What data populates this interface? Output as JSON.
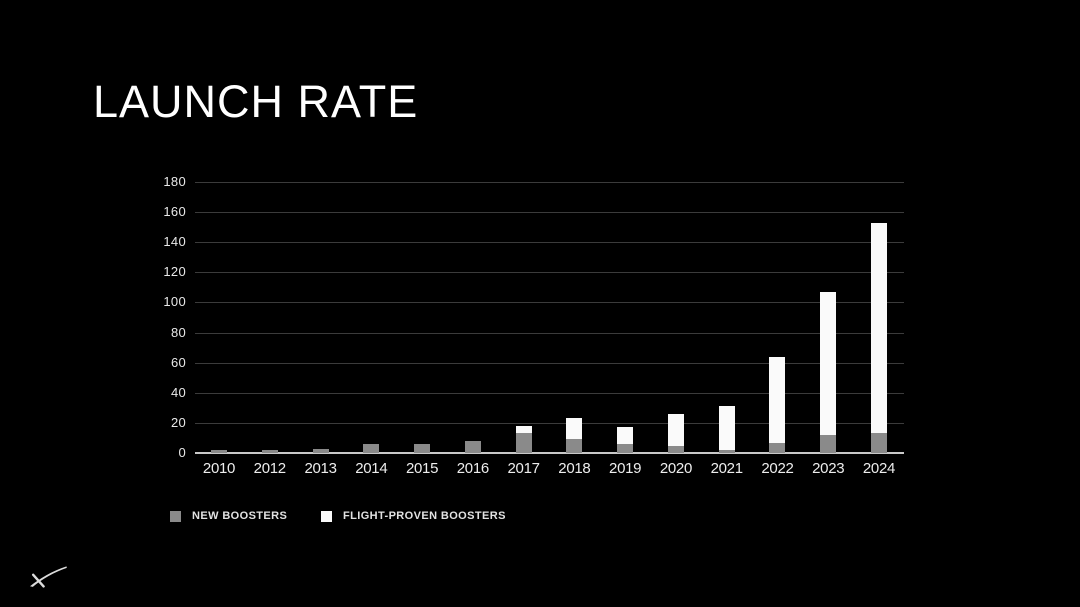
{
  "slide": {
    "title": "LAUNCH RATE",
    "background_color": "#000000"
  },
  "legend": {
    "items": [
      {
        "label": "NEW BOOSTERS",
        "color": "#8a8a8a"
      },
      {
        "label": "FLIGHT-PROVEN BOOSTERS",
        "color": "#fafafa"
      }
    ]
  },
  "logo": {
    "name": "spacex-x-logo"
  },
  "chart_data": {
    "type": "bar",
    "stacked": true,
    "title": "LAUNCH RATE",
    "xlabel": "",
    "ylabel": "",
    "ylim": [
      0,
      180
    ],
    "ytick_step": 20,
    "grid": "horizontal",
    "legend_position": "bottom-left",
    "categories": [
      "2010",
      "2012",
      "2013",
      "2014",
      "2015",
      "2016",
      "2017",
      "2018",
      "2019",
      "2020",
      "2021",
      "2022",
      "2023",
      "2024"
    ],
    "series": [
      {
        "name": "NEW BOOSTERS",
        "color": "#8a8a8a",
        "values": [
          2,
          2,
          3,
          6,
          6,
          8,
          13,
          9,
          6,
          5,
          2,
          7,
          12,
          13
        ]
      },
      {
        "name": "FLIGHT-PROVEN BOOSTERS",
        "color": "#fafafa",
        "values": [
          0,
          0,
          0,
          0,
          0,
          0,
          5,
          14,
          11,
          21,
          29,
          57,
          95,
          140
        ]
      }
    ],
    "totals": [
      2,
      2,
      3,
      6,
      6,
      8,
      18,
      23,
      17,
      26,
      31,
      64,
      107,
      153
    ],
    "colors": {
      "gridline": "#3b3b3b",
      "axis_line": "#c9c9c9",
      "tick_label": "#e8e8e8"
    }
  }
}
